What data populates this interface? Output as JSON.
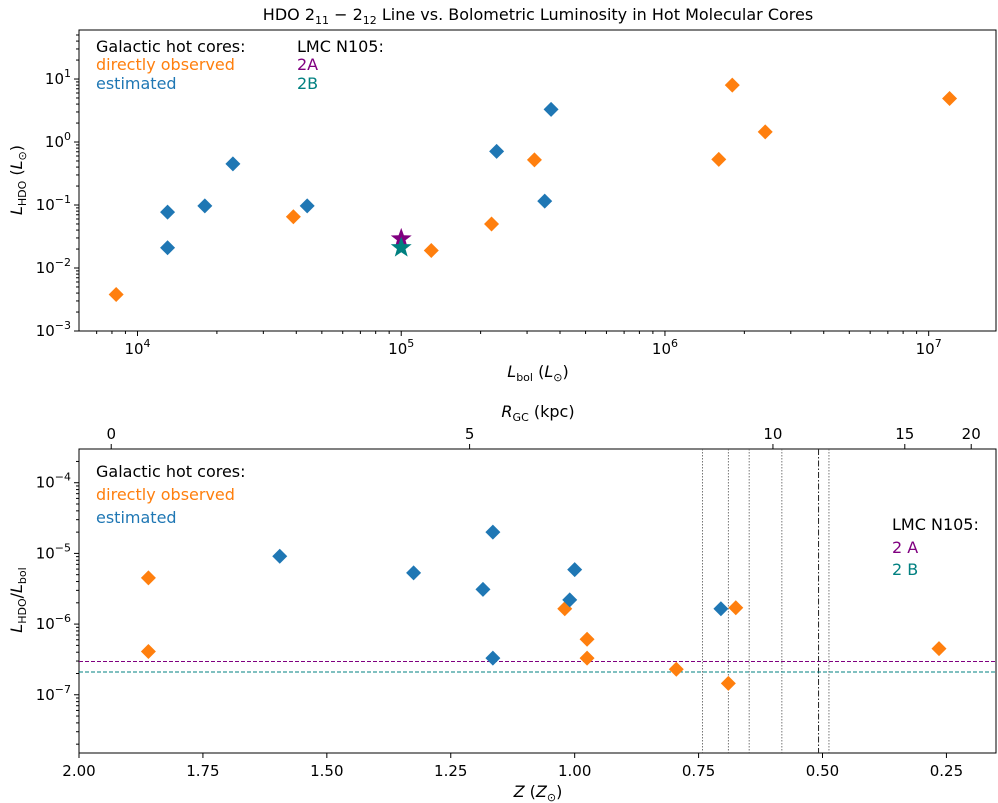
{
  "title": "HDO 2₁₁ − 2₁₂ Line vs. Bolometric Luminosity in Hot Molecular Cores",
  "colors": {
    "observed": "#ff7f0e",
    "estimated": "#1f77b4",
    "lmc_2a": "#800080",
    "lmc_2b": "#008080",
    "dark": "#000000",
    "grid_vline": "#555555"
  },
  "legend": {
    "galactic_header": "Galactic hot cores:",
    "observed": "directly observed",
    "estimated": "estimated",
    "lmc_header": "LMC N105:",
    "lmc_2a_top": "2A",
    "lmc_2b_top": "2B",
    "lmc_2a_bottom": "2 A",
    "lmc_2b_bottom": "2 B"
  },
  "chart_data": [
    {
      "type": "scatter",
      "xlabel": "L_bol (L_⊙)",
      "ylabel": "L_HDO (L_⊙)",
      "xscale": "log",
      "yscale": "log",
      "xlim": [
        6000,
        18000000
      ],
      "ylim": [
        0.001,
        60
      ],
      "x_ticks": [
        {
          "value": 10000,
          "label": "10⁴"
        },
        {
          "value": 100000,
          "label": "10⁵"
        },
        {
          "value": 1000000,
          "label": "10⁶"
        },
        {
          "value": 10000000,
          "label": "10⁷"
        }
      ],
      "y_ticks": [
        {
          "value": 0.001,
          "label": "10⁻³"
        },
        {
          "value": 0.01,
          "label": "10⁻²"
        },
        {
          "value": 0.1,
          "label": "10⁻¹"
        },
        {
          "value": 1,
          "label": "10⁰"
        },
        {
          "value": 10,
          "label": "10¹"
        }
      ],
      "legend_position": "top-left",
      "series": [
        {
          "name": "directly observed",
          "marker": "diamond",
          "color": "#ff7f0e",
          "points": [
            [
              8300,
              0.0038
            ],
            [
              39000,
              0.065
            ],
            [
              130000,
              0.019
            ],
            [
              220000,
              0.05
            ],
            [
              320000,
              0.52
            ],
            [
              1600000,
              0.53
            ],
            [
              1800000,
              8.0
            ],
            [
              2400000,
              1.45
            ],
            [
              12000000,
              4.9
            ]
          ]
        },
        {
          "name": "estimated",
          "marker": "diamond",
          "color": "#1f77b4",
          "points": [
            [
              13000,
              0.021
            ],
            [
              13000,
              0.077
            ],
            [
              18000,
              0.097
            ],
            [
              23000,
              0.45
            ],
            [
              44000,
              0.097
            ],
            [
              230000,
              0.71
            ],
            [
              350000,
              0.115
            ],
            [
              370000,
              3.3
            ]
          ]
        },
        {
          "name": "2A",
          "marker": "star",
          "color": "#800080",
          "points": [
            [
              100000,
              0.029
            ]
          ]
        },
        {
          "name": "2B",
          "marker": "star",
          "color": "#008080",
          "points": [
            [
              100000,
              0.021
            ]
          ]
        }
      ]
    },
    {
      "type": "scatter",
      "xlabel": "Z (Z_⊙)",
      "ylabel": "L_HDO/L_bol",
      "top_xlabel": "R_GC (kpc)",
      "xscale": "linear",
      "x_inverted": true,
      "yscale": "log",
      "xlim": [
        2.0,
        0.15
      ],
      "ylim": [
        1.5e-08,
        0.0003
      ],
      "x_ticks": [
        {
          "value": 2.0,
          "label": "2.00"
        },
        {
          "value": 1.75,
          "label": "1.75"
        },
        {
          "value": 1.5,
          "label": "1.50"
        },
        {
          "value": 1.25,
          "label": "1.25"
        },
        {
          "value": 1.0,
          "label": "1.00"
        },
        {
          "value": 0.75,
          "label": "0.75"
        },
        {
          "value": 0.5,
          "label": "0.50"
        },
        {
          "value": 0.25,
          "label": "0.25"
        }
      ],
      "top_ticks": [
        {
          "value": 1.935,
          "label": "0"
        },
        {
          "value": 1.212,
          "label": "5"
        },
        {
          "value": 0.6,
          "label": "10"
        },
        {
          "value": 0.334,
          "label": "15"
        },
        {
          "value": 0.2,
          "label": "20"
        }
      ],
      "y_ticks": [
        {
          "value": 1e-07,
          "label": "10⁻⁷"
        },
        {
          "value": 1e-06,
          "label": "10⁻⁶"
        },
        {
          "value": 1e-05,
          "label": "10⁻⁵"
        },
        {
          "value": 0.0001,
          "label": "10⁻⁴"
        }
      ],
      "vertical_lines": [
        {
          "x": 0.742,
          "style": "dotted"
        },
        {
          "x": 0.69,
          "style": "dotted"
        },
        {
          "x": 0.648,
          "style": "dotted"
        },
        {
          "x": 0.582,
          "style": "dotted"
        },
        {
          "x": 0.508,
          "style": "dashdot"
        },
        {
          "x": 0.487,
          "style": "dotted"
        }
      ],
      "horizontal_lines": [
        {
          "y": 2.95e-07,
          "label": "2 A",
          "color": "#800080"
        },
        {
          "y": 2.1e-07,
          "label": "2 B",
          "color": "#008080"
        }
      ],
      "legend_position": "top-left",
      "series": [
        {
          "name": "directly observed",
          "marker": "diamond",
          "color": "#ff7f0e",
          "points": [
            [
              1.86,
              4.5e-06
            ],
            [
              1.86,
              4.1e-07
            ],
            [
              1.02,
              1.65e-06
            ],
            [
              0.975,
              6.1e-07
            ],
            [
              0.975,
              3.3e-07
            ],
            [
              0.795,
              2.3e-07
            ],
            [
              0.69,
              1.45e-07
            ],
            [
              0.675,
              1.7e-06
            ],
            [
              0.265,
              4.5e-07
            ]
          ]
        },
        {
          "name": "estimated",
          "marker": "diamond",
          "color": "#1f77b4",
          "points": [
            [
              1.595,
              9.1e-06
            ],
            [
              1.325,
              5.3e-06
            ],
            [
              1.165,
              2e-05
            ],
            [
              1.185,
              3.1e-06
            ],
            [
              1.165,
              3.3e-07
            ],
            [
              1.0,
              5.9e-06
            ],
            [
              1.01,
              2.2e-06
            ],
            [
              0.705,
              1.65e-06
            ]
          ]
        }
      ]
    }
  ]
}
